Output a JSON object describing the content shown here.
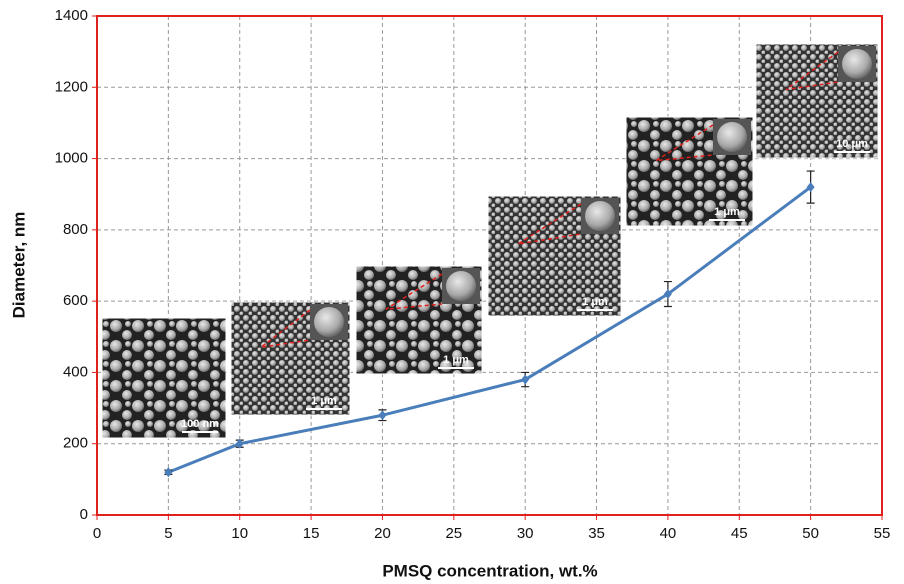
{
  "chart_data": {
    "type": "line",
    "x_label": "PMSQ concentration, wt.%",
    "y_label": "Diameter, nm",
    "x": [
      5,
      10,
      20,
      30,
      40,
      50
    ],
    "series": [
      {
        "color": "#4a7ebb",
        "values": [
          120,
          200,
          280,
          380,
          620,
          920
        ],
        "errors": [
          6,
          10,
          15,
          20,
          35,
          45
        ]
      }
    ],
    "xlim": [
      0,
      55
    ],
    "xticks": [
      0,
      5,
      10,
      15,
      20,
      25,
      30,
      35,
      40,
      45,
      50,
      55
    ],
    "ylim": [
      0,
      1400
    ],
    "yticks": [
      0,
      200,
      400,
      600,
      800,
      1000,
      1200,
      1400
    ],
    "grid": true,
    "axis_color": "#e0201c",
    "insets": [
      "100 nm",
      "1 μm",
      "1 μm",
      "1 μm",
      "1 μm",
      "10 μm"
    ]
  }
}
